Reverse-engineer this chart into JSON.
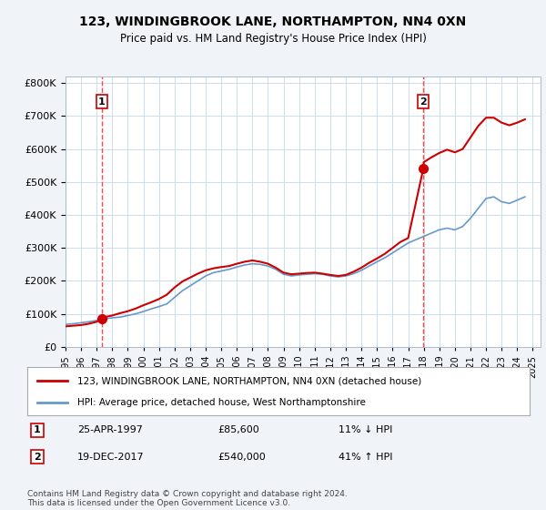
{
  "title": "123, WINDINGBROOK LANE, NORTHAMPTON, NN4 0XN",
  "subtitle": "Price paid vs. HM Land Registry's House Price Index (HPI)",
  "legend_line1": "123, WINDINGBROOK LANE, NORTHAMPTON, NN4 0XN (detached house)",
  "legend_line2": "HPI: Average price, detached house, West Northamptonshire",
  "point1_label": "1",
  "point1_date": "25-APR-1997",
  "point1_price": "£85,600",
  "point1_hpi": "11% ↓ HPI",
  "point2_label": "2",
  "point2_date": "19-DEC-2017",
  "point2_price": "£540,000",
  "point2_hpi": "41% ↑ HPI",
  "footer": "Contains HM Land Registry data © Crown copyright and database right 2024.\nThis data is licensed under the Open Government Licence v3.0.",
  "ylim": [
    0,
    800000
  ],
  "yticks": [
    0,
    100000,
    200000,
    300000,
    400000,
    500000,
    600000,
    700000,
    800000
  ],
  "bg_color": "#f0f4f8",
  "plot_bg": "#ffffff",
  "red_color": "#cc0000",
  "blue_color": "#6699cc",
  "vline_color": "#ff4444",
  "point1_x": 1997.32,
  "point2_x": 2017.97,
  "hpi_data_x": [
    1995,
    1995.5,
    1996,
    1996.5,
    1997,
    1997.5,
    1998,
    1998.5,
    1999,
    1999.5,
    2000,
    2000.5,
    2001,
    2001.5,
    2002,
    2002.5,
    2003,
    2003.5,
    2004,
    2004.5,
    2005,
    2005.5,
    2006,
    2006.5,
    2007,
    2007.5,
    2008,
    2008.5,
    2009,
    2009.5,
    2010,
    2010.5,
    2011,
    2011.5,
    2012,
    2012.5,
    2013,
    2013.5,
    2014,
    2014.5,
    2015,
    2015.5,
    2016,
    2016.5,
    2017,
    2017.5,
    2018,
    2018.5,
    2019,
    2019.5,
    2020,
    2020.5,
    2021,
    2021.5,
    2022,
    2022.5,
    2023,
    2023.5,
    2024,
    2024.5
  ],
  "hpi_data_y": [
    68000,
    70000,
    73000,
    76000,
    80000,
    84000,
    88000,
    90000,
    95000,
    100000,
    107000,
    115000,
    122000,
    130000,
    150000,
    170000,
    185000,
    200000,
    215000,
    225000,
    230000,
    235000,
    242000,
    248000,
    252000,
    250000,
    245000,
    235000,
    220000,
    215000,
    218000,
    220000,
    222000,
    220000,
    215000,
    212000,
    215000,
    222000,
    232000,
    245000,
    258000,
    270000,
    285000,
    300000,
    315000,
    325000,
    335000,
    345000,
    355000,
    360000,
    355000,
    365000,
    390000,
    420000,
    450000,
    455000,
    440000,
    435000,
    445000,
    455000
  ],
  "price_data_x": [
    1995,
    1995.5,
    1996,
    1996.5,
    1997,
    1997.32,
    1997.5,
    1998,
    1998.5,
    1999,
    1999.5,
    2000,
    2000.5,
    2001,
    2001.5,
    2002,
    2002.5,
    2003,
    2003.5,
    2004,
    2004.5,
    2005,
    2005.5,
    2006,
    2006.5,
    2007,
    2007.5,
    2008,
    2008.5,
    2009,
    2009.5,
    2010,
    2010.5,
    2011,
    2011.5,
    2012,
    2012.5,
    2013,
    2013.5,
    2014,
    2014.5,
    2015,
    2015.5,
    2016,
    2016.5,
    2017,
    2017.97,
    2018,
    2018.5,
    2019,
    2019.5,
    2020,
    2020.5,
    2021,
    2021.5,
    2022,
    2022.5,
    2023,
    2023.5,
    2024,
    2024.5
  ],
  "price_data_y": [
    62000,
    64000,
    66000,
    70000,
    76000,
    85600,
    90000,
    95000,
    102000,
    108000,
    116000,
    126000,
    135000,
    145000,
    158000,
    180000,
    198000,
    210000,
    222000,
    232000,
    238000,
    242000,
    245000,
    252000,
    258000,
    262000,
    258000,
    252000,
    240000,
    225000,
    220000,
    222000,
    224000,
    225000,
    222000,
    218000,
    215000,
    218000,
    228000,
    240000,
    255000,
    268000,
    282000,
    300000,
    318000,
    330000,
    540000,
    560000,
    575000,
    588000,
    598000,
    590000,
    600000,
    635000,
    670000,
    695000,
    695000,
    680000,
    672000,
    680000,
    690000
  ],
  "xtick_years": [
    1995,
    1996,
    1997,
    1998,
    1999,
    2000,
    2001,
    2002,
    2003,
    2004,
    2005,
    2006,
    2007,
    2008,
    2009,
    2010,
    2011,
    2012,
    2013,
    2014,
    2015,
    2016,
    2017,
    2018,
    2019,
    2020,
    2021,
    2022,
    2023,
    2024,
    2025
  ]
}
